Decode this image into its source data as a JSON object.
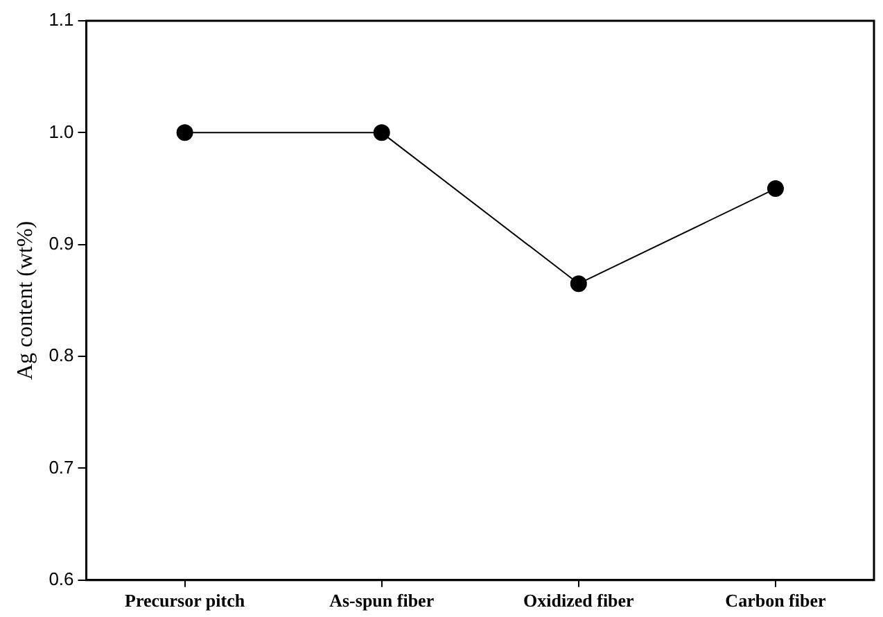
{
  "chart_data": {
    "type": "line",
    "ylabel": "Ag content (wt%)",
    "categories": [
      "Precursor pitch",
      "As-spun fiber",
      "Oxidized fiber",
      "Carbon fiber"
    ],
    "series": [
      {
        "color": "#000000",
        "values": [
          1.0,
          1.0,
          0.865,
          0.95
        ]
      }
    ],
    "ylim": [
      0.6,
      1.1
    ],
    "yticks": [
      {
        "value": 0.6,
        "label": "0.6"
      },
      {
        "value": 0.7,
        "label": "0.7"
      },
      {
        "value": 0.8,
        "label": "0.8"
      },
      {
        "value": 0.9,
        "label": "0.9"
      },
      {
        "value": 1.0,
        "label": "1.0"
      },
      {
        "value": 1.1,
        "label": "1.1"
      }
    ],
    "grid": false,
    "legend": false,
    "marker": "circle",
    "line_style": "solid"
  }
}
